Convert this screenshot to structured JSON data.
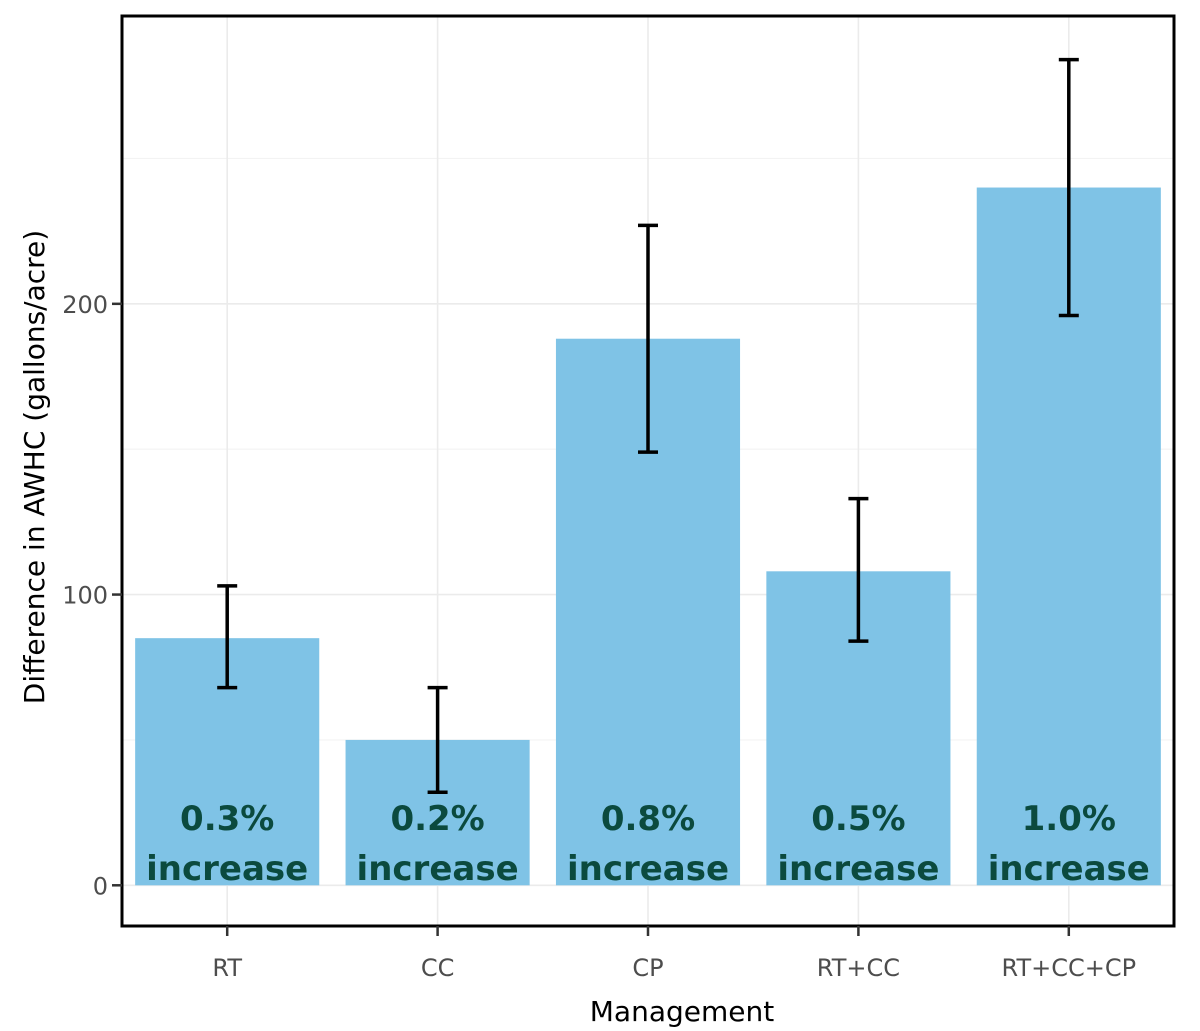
{
  "chart_data": {
    "type": "bar",
    "title": "",
    "xlabel": "Management",
    "ylabel": "Difference in AWHC (gallons/acre)",
    "categories": [
      "RT",
      "CC",
      "CP",
      "RT+CC",
      "RT+CC+CP"
    ],
    "values": [
      85,
      50,
      188,
      108,
      240
    ],
    "error_low": [
      68,
      32,
      149,
      84,
      196
    ],
    "error_high": [
      103,
      68,
      227,
      133,
      284
    ],
    "bar_labels": [
      [
        "0.3%",
        "increase"
      ],
      [
        "0.2%",
        "increase"
      ],
      [
        "0.8%",
        "increase"
      ],
      [
        "0.5%",
        "increase"
      ],
      [
        "1.0%",
        "increase"
      ]
    ],
    "yticks": [
      0,
      100,
      200
    ],
    "ylim": [
      -14,
      299
    ],
    "grid": true,
    "legend": "none",
    "bar_color": "#7fc3e6",
    "bar_label_color": "#0b4a3e"
  }
}
